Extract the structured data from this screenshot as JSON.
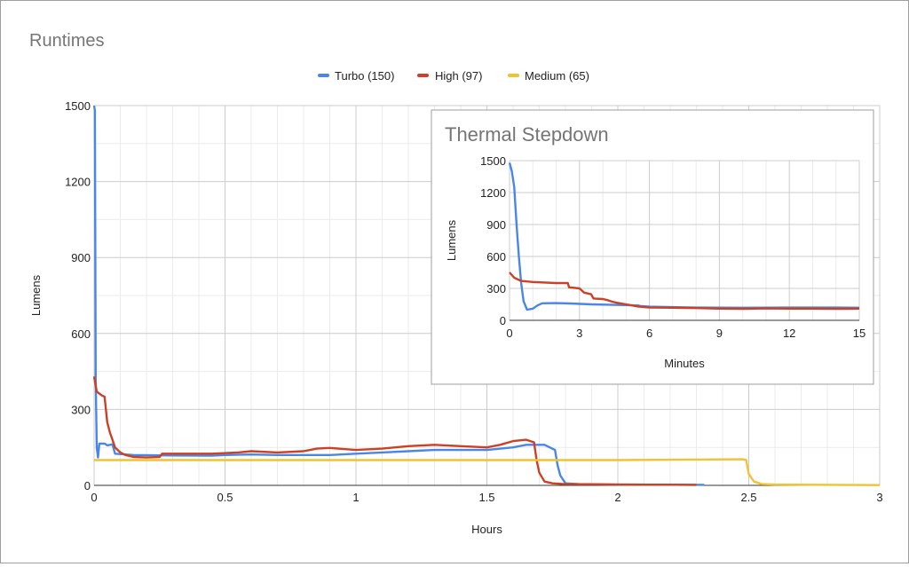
{
  "chart_data": [
    {
      "id": "main",
      "type": "line",
      "title": "Runtimes",
      "xlabel": "Hours",
      "ylabel": "Lumens",
      "xlim": [
        0,
        3
      ],
      "ylim": [
        0,
        1500
      ],
      "x_ticks": [
        0,
        0.5,
        1,
        1.5,
        2,
        2.5,
        3
      ],
      "x_tick_labels": [
        "0",
        "0.5",
        "1",
        "1.5",
        "2",
        "2.5",
        "3"
      ],
      "y_ticks": [
        0,
        300,
        600,
        900,
        1200,
        1500
      ],
      "y_tick_labels": [
        "0",
        "300",
        "600",
        "900",
        "1200",
        "1500"
      ],
      "grid": true,
      "legend": "top-center",
      "series": [
        {
          "name": "Turbo (150)",
          "color": "#4a86e8",
          "points": [
            [
              0,
              1500
            ],
            [
              0.003,
              1480
            ],
            [
              0.006,
              420
            ],
            [
              0.01,
              150
            ],
            [
              0.015,
              110
            ],
            [
              0.02,
              165
            ],
            [
              0.04,
              165
            ],
            [
              0.05,
              158
            ],
            [
              0.07,
              162
            ],
            [
              0.08,
              125
            ],
            [
              0.15,
              120
            ],
            [
              0.3,
              118
            ],
            [
              0.45,
              117
            ],
            [
              0.5,
              120
            ],
            [
              0.6,
              122
            ],
            [
              0.7,
              120
            ],
            [
              0.8,
              120
            ],
            [
              0.9,
              120
            ],
            [
              1.0,
              125
            ],
            [
              1.1,
              130
            ],
            [
              1.2,
              135
            ],
            [
              1.3,
              140
            ],
            [
              1.4,
              140
            ],
            [
              1.5,
              140
            ],
            [
              1.6,
              150
            ],
            [
              1.65,
              160
            ],
            [
              1.72,
              160
            ],
            [
              1.76,
              140
            ],
            [
              1.77,
              80
            ],
            [
              1.78,
              40
            ],
            [
              1.8,
              8
            ],
            [
              1.85,
              5
            ],
            [
              2.0,
              3
            ],
            [
              2.33,
              2
            ]
          ]
        },
        {
          "name": "High (97)",
          "color": "#cc4125",
          "points": [
            [
              0,
              430
            ],
            [
              0.01,
              370
            ],
            [
              0.03,
              355
            ],
            [
              0.04,
              350
            ],
            [
              0.045,
              300
            ],
            [
              0.05,
              250
            ],
            [
              0.06,
              210
            ],
            [
              0.07,
              180
            ],
            [
              0.08,
              150
            ],
            [
              0.1,
              130
            ],
            [
              0.12,
              120
            ],
            [
              0.15,
              112
            ],
            [
              0.2,
              110
            ],
            [
              0.25,
              112
            ],
            [
              0.26,
              125
            ],
            [
              0.35,
              125
            ],
            [
              0.45,
              125
            ],
            [
              0.55,
              130
            ],
            [
              0.6,
              135
            ],
            [
              0.7,
              130
            ],
            [
              0.8,
              135
            ],
            [
              0.85,
              145
            ],
            [
              0.9,
              148
            ],
            [
              1.0,
              140
            ],
            [
              1.1,
              145
            ],
            [
              1.2,
              155
            ],
            [
              1.3,
              160
            ],
            [
              1.4,
              155
            ],
            [
              1.5,
              150
            ],
            [
              1.55,
              160
            ],
            [
              1.6,
              175
            ],
            [
              1.65,
              180
            ],
            [
              1.68,
              170
            ],
            [
              1.69,
              100
            ],
            [
              1.7,
              50
            ],
            [
              1.72,
              15
            ],
            [
              1.75,
              8
            ],
            [
              1.8,
              5
            ],
            [
              2.0,
              3
            ],
            [
              2.3,
              2
            ]
          ]
        },
        {
          "name": "Medium (65)",
          "color": "#f1c232",
          "points": [
            [
              0,
              100
            ],
            [
              0.5,
              100
            ],
            [
              1.0,
              100
            ],
            [
              1.5,
              100
            ],
            [
              2.0,
              100
            ],
            [
              2.48,
              103
            ],
            [
              2.49,
              100
            ],
            [
              2.5,
              45
            ],
            [
              2.52,
              15
            ],
            [
              2.55,
              5
            ],
            [
              2.6,
              3
            ],
            [
              3.0,
              1
            ]
          ]
        }
      ]
    },
    {
      "id": "inset",
      "type": "line",
      "title": "Thermal Stepdown",
      "xlabel": "Minutes",
      "ylabel": "Lumens",
      "xlim": [
        0,
        15
      ],
      "ylim": [
        0,
        1500
      ],
      "x_ticks": [
        0,
        3,
        6,
        9,
        12,
        15
      ],
      "x_tick_labels": [
        "0",
        "3",
        "6",
        "9",
        "12",
        "15"
      ],
      "y_ticks": [
        0,
        300,
        600,
        900,
        1200,
        1500
      ],
      "y_tick_labels": [
        "0",
        "300",
        "600",
        "900",
        "1200",
        "1500"
      ],
      "grid": true,
      "series": [
        {
          "name": "Turbo (150)",
          "color": "#4a86e8",
          "points": [
            [
              0,
              1480
            ],
            [
              0.1,
              1400
            ],
            [
              0.2,
              1250
            ],
            [
              0.3,
              900
            ],
            [
              0.4,
              600
            ],
            [
              0.5,
              350
            ],
            [
              0.6,
              180
            ],
            [
              0.75,
              100
            ],
            [
              1.0,
              110
            ],
            [
              1.2,
              140
            ],
            [
              1.4,
              160
            ],
            [
              2.0,
              162
            ],
            [
              2.6,
              158
            ],
            [
              3.5,
              150
            ],
            [
              4.5,
              145
            ],
            [
              5.5,
              140
            ],
            [
              5.6,
              135
            ],
            [
              6.0,
              128
            ],
            [
              8.0,
              120
            ],
            [
              10.0,
              118
            ],
            [
              12.0,
              120
            ],
            [
              14.0,
              120
            ],
            [
              15.0,
              118
            ]
          ]
        },
        {
          "name": "High (97)",
          "color": "#cc4125",
          "points": [
            [
              0,
              450
            ],
            [
              0.2,
              400
            ],
            [
              0.5,
              370
            ],
            [
              1.0,
              360
            ],
            [
              2.0,
              350
            ],
            [
              2.5,
              350
            ],
            [
              2.55,
              310
            ],
            [
              3.0,
              300
            ],
            [
              3.2,
              260
            ],
            [
              3.5,
              245
            ],
            [
              3.6,
              205
            ],
            [
              4.0,
              200
            ],
            [
              4.2,
              190
            ],
            [
              4.4,
              175
            ],
            [
              4.6,
              165
            ],
            [
              5.0,
              150
            ],
            [
              5.5,
              130
            ],
            [
              6.0,
              120
            ],
            [
              7.0,
              118
            ],
            [
              8.0,
              115
            ],
            [
              9.0,
              110
            ],
            [
              10.0,
              108
            ],
            [
              11.0,
              112
            ],
            [
              12.0,
              110
            ],
            [
              13.0,
              110
            ],
            [
              14.0,
              108
            ],
            [
              15.0,
              110
            ]
          ]
        }
      ]
    }
  ]
}
